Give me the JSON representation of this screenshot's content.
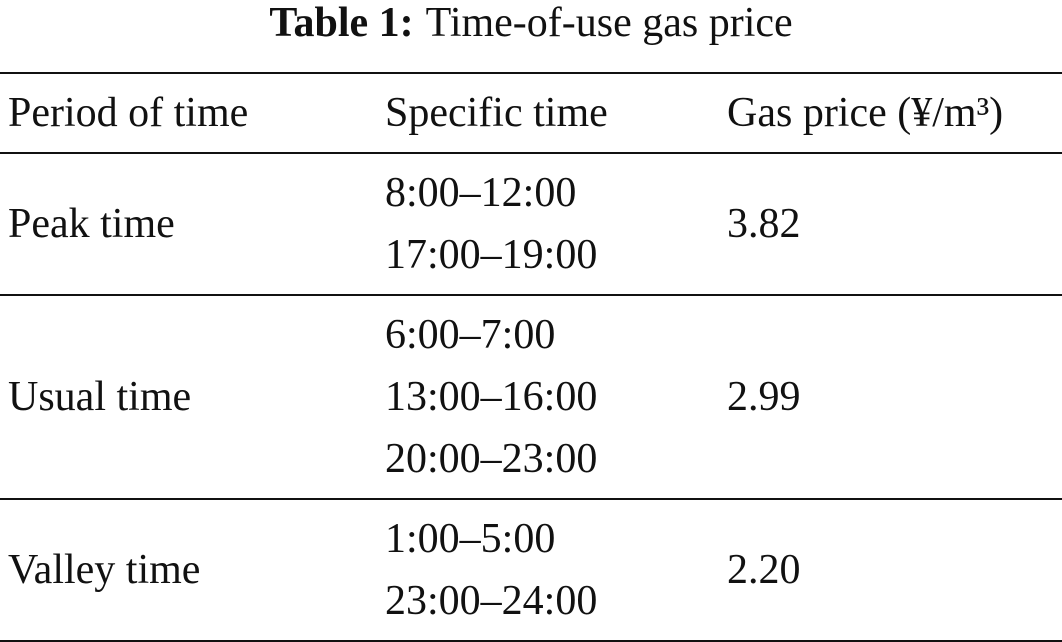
{
  "caption": {
    "label": "Table 1:",
    "title": "Time-of-use gas price"
  },
  "table": {
    "header": [
      "Period of time",
      "Specific time",
      "Gas price (¥/m³)"
    ],
    "rows": [
      {
        "period": "Peak time",
        "times": [
          "8:00–12:00",
          "17:00–19:00"
        ],
        "price": "3.82"
      },
      {
        "period": "Usual time",
        "times": [
          "6:00–7:00",
          "13:00–16:00",
          "20:00–23:00"
        ],
        "price": "2.99"
      },
      {
        "period": "Valley time",
        "times": [
          "1:00–5:00",
          "23:00–24:00"
        ],
        "price": "2.20"
      }
    ]
  }
}
